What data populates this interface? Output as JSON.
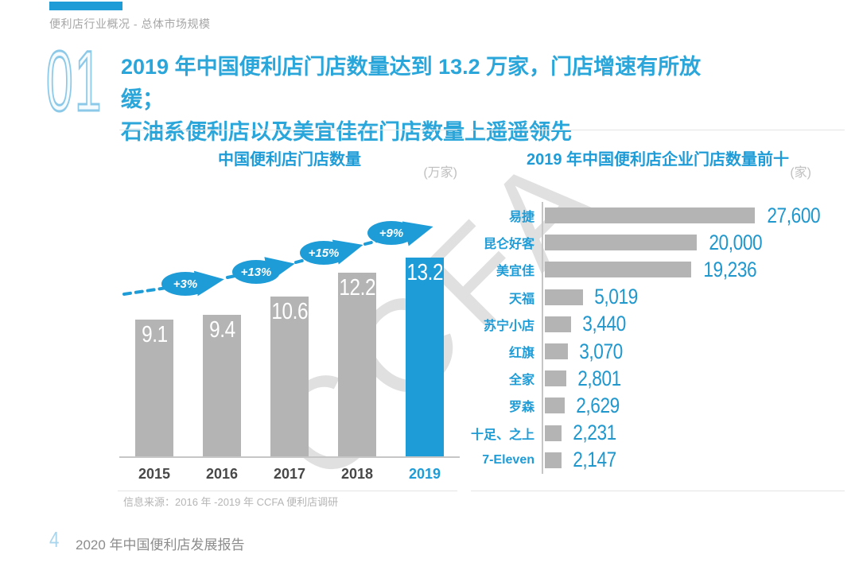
{
  "accent_color": "#1e9cd7",
  "header": {
    "breadcrumb": "便利店行业概况 - 总体市场规模"
  },
  "section": {
    "number": "01",
    "title_line1": "2019 年中国便利店门店数量达到 13.2 万家，门店增速有所放缓；",
    "title_line2": "石油系便利店以及美宜佳在门店数量上遥遥领先"
  },
  "watermark": "CCFA",
  "source_note": "信息来源：2016 年 -2019 年 CCFA 便利店调研",
  "footer": {
    "page_number": "4",
    "report_title": "2020 年中国便利店发展报告"
  },
  "chart_data": [
    {
      "type": "bar",
      "title": "中国便利店门店数量",
      "unit": "(万家)",
      "categories": [
        "2015",
        "2016",
        "2017",
        "2018",
        "2019"
      ],
      "values": [
        9.1,
        9.4,
        10.6,
        12.2,
        13.2
      ],
      "value_labels": [
        "9.1",
        "9.4",
        "10.6",
        "12.2",
        "13.2"
      ],
      "growth_labels": [
        "+3%",
        "+13%",
        "+15%",
        "+9%"
      ],
      "highlight_index": 4,
      "bar_color": "#b4b4b4",
      "highlight_color": "#1e9cd7",
      "ylim": [
        0,
        13.2
      ],
      "grid": false,
      "value_position": "inside-top"
    },
    {
      "type": "bar-horizontal",
      "title": "2019 年中国便利店企业门店数量前十",
      "unit": "(家)",
      "categories": [
        "易捷",
        "昆仑好客",
        "美宜佳",
        "天福",
        "苏宁小店",
        "红旗",
        "全家",
        "罗森",
        "十足、之上",
        "7-Eleven"
      ],
      "values": [
        27600,
        20000,
        19236,
        5019,
        3440,
        3070,
        2801,
        2629,
        2231,
        2147
      ],
      "value_labels": [
        "27,600",
        "20,000",
        "19,236",
        "5,019",
        "3,440",
        "3,070",
        "2,801",
        "2,629",
        "2,231",
        "2,147"
      ],
      "bar_color": "#b4b4b4",
      "label_color": "#1e9cd7",
      "xlim": [
        0,
        27600
      ],
      "grid": false,
      "value_position": "right-of-bar"
    }
  ]
}
